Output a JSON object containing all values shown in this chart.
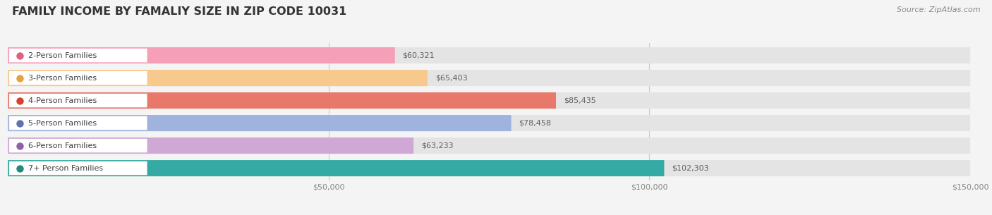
{
  "title": "FAMILY INCOME BY FAMALIY SIZE IN ZIP CODE 10031",
  "source": "Source: ZipAtlas.com",
  "categories": [
    "2-Person Families",
    "3-Person Families",
    "4-Person Families",
    "5-Person Families",
    "6-Person Families",
    "7+ Person Families"
  ],
  "values": [
    60321,
    65403,
    85435,
    78458,
    63233,
    102303
  ],
  "labels": [
    "$60,321",
    "$65,403",
    "$85,435",
    "$78,458",
    "$63,233",
    "$102,303"
  ],
  "bar_colors": [
    "#f5a0b8",
    "#f8c98c",
    "#e8786a",
    "#9fb3de",
    "#cfa8d5",
    "#35aaa5"
  ],
  "label_dot_colors": [
    "#e06080",
    "#e8a040",
    "#d84030",
    "#6070b0",
    "#9060a8",
    "#258880"
  ],
  "bg_color": "#f4f4f4",
  "bar_bg_color": "#e4e4e4",
  "xlim_max": 150000,
  "xticks": [
    50000,
    100000,
    150000
  ],
  "xticklabels": [
    "$50,000",
    "$100,000",
    "$150,000"
  ],
  "bar_height": 0.72,
  "title_fontsize": 11.5,
  "label_fontsize": 8.0,
  "value_fontsize": 8.0,
  "source_fontsize": 8.0,
  "tick_fontsize": 8.0
}
